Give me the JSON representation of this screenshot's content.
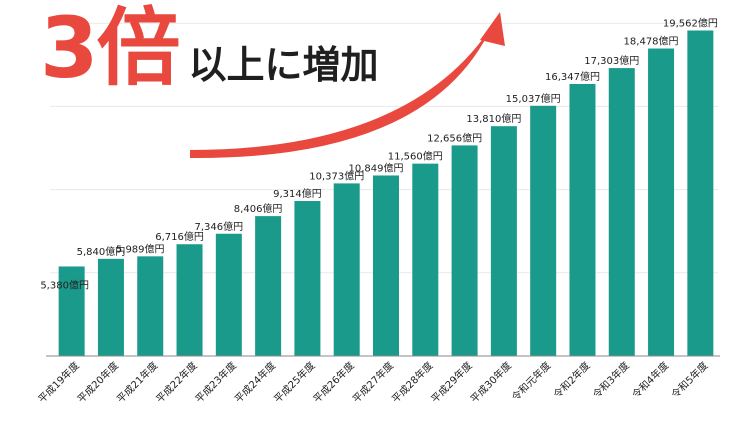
{
  "headline": {
    "big": "3倍",
    "small": "以上に増加"
  },
  "colors": {
    "bar": "#1a9a8a",
    "arrow": "#e8483e",
    "grid": "#e9e9e9",
    "axis": "#8a8a8a",
    "text": "#222222"
  },
  "chart_data": {
    "type": "bar",
    "categories": [
      "平成19年度",
      "平成20年度",
      "平成21年度",
      "平成22年度",
      "平成23年度",
      "平成24年度",
      "平成25年度",
      "平成26年度",
      "平成27年度",
      "平成28年度",
      "平成29年度",
      "平成30年度",
      "令和元年度",
      "令和2年度",
      "令和3年度",
      "令和4年度",
      "令和5年度"
    ],
    "values": [
      5380,
      5840,
      5989,
      6716,
      7346,
      8406,
      9314,
      10373,
      10849,
      11560,
      12656,
      13810,
      15037,
      16347,
      17303,
      18478,
      19562
    ],
    "value_labels": [
      "5,380億円",
      "5,840億円",
      "5,989億円",
      "6,716億円",
      "7,346億円",
      "8,406億円",
      "9,314億円",
      "10,373億円",
      "10,849億円",
      "11,560億円",
      "12,656億円",
      "13,810億円",
      "15,037億円",
      "16,347億円",
      "17,303億円",
      "18,478億円",
      "19,562億円"
    ],
    "grid": true,
    "legend": "none"
  }
}
